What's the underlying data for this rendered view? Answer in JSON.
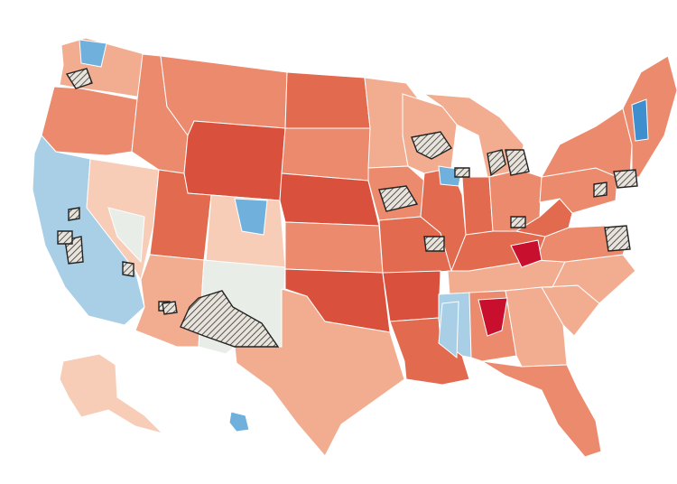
{
  "map": {
    "palette": {
      "strong_red": "#c8102e",
      "dark_red": "#d9503c",
      "red": "#e26a4f",
      "mid_red": "#eb8a6c",
      "light_red": "#f2ad91",
      "pale_red": "#f8cdb8",
      "neutral": "#e9ede8",
      "pale_blue": "#cfe3ee",
      "light_blue": "#a8cfe6",
      "blue": "#6fb0dc",
      "dark_blue": "#3f8fcf",
      "hatch": "#bdb7ae",
      "border": "#ffffff",
      "outline": "#222222"
    },
    "regions": [
      {
        "name": "washington",
        "fill": "light_red"
      },
      {
        "name": "oregon",
        "fill": "mid_red"
      },
      {
        "name": "california",
        "fill": "light_blue"
      },
      {
        "name": "nevada",
        "fill": "pale_red"
      },
      {
        "name": "idaho",
        "fill": "mid_red"
      },
      {
        "name": "montana",
        "fill": "mid_red"
      },
      {
        "name": "wyoming",
        "fill": "dark_red"
      },
      {
        "name": "utah",
        "fill": "red"
      },
      {
        "name": "colorado",
        "fill": "pale_red"
      },
      {
        "name": "arizona",
        "fill": "light_red"
      },
      {
        "name": "new-mexico",
        "fill": "neutral"
      },
      {
        "name": "north-dakota",
        "fill": "red"
      },
      {
        "name": "south-dakota",
        "fill": "mid_red"
      },
      {
        "name": "nebraska",
        "fill": "dark_red"
      },
      {
        "name": "kansas",
        "fill": "mid_red"
      },
      {
        "name": "oklahoma",
        "fill": "dark_red"
      },
      {
        "name": "texas",
        "fill": "light_red"
      },
      {
        "name": "minnesota",
        "fill": "light_red"
      },
      {
        "name": "iowa",
        "fill": "mid_red"
      },
      {
        "name": "missouri",
        "fill": "red"
      },
      {
        "name": "arkansas",
        "fill": "dark_red"
      },
      {
        "name": "louisiana",
        "fill": "red"
      },
      {
        "name": "wisconsin",
        "fill": "light_red"
      },
      {
        "name": "illinois",
        "fill": "red"
      },
      {
        "name": "michigan",
        "fill": "light_red"
      },
      {
        "name": "indiana",
        "fill": "red"
      },
      {
        "name": "ohio",
        "fill": "mid_red"
      },
      {
        "name": "kentucky",
        "fill": "red"
      },
      {
        "name": "tennessee",
        "fill": "light_red"
      },
      {
        "name": "mississippi",
        "fill": "light_blue"
      },
      {
        "name": "alabama",
        "fill": "mid_red"
      },
      {
        "name": "georgia",
        "fill": "light_red"
      },
      {
        "name": "florida",
        "fill": "mid_red"
      },
      {
        "name": "south-carolina",
        "fill": "light_red"
      },
      {
        "name": "north-carolina",
        "fill": "light_red"
      },
      {
        "name": "virginia",
        "fill": "mid_red"
      },
      {
        "name": "west-virginia",
        "fill": "red"
      },
      {
        "name": "pennsylvania",
        "fill": "mid_red"
      },
      {
        "name": "new-york",
        "fill": "mid_red"
      },
      {
        "name": "new-england",
        "fill": "mid_red"
      },
      {
        "name": "alaska",
        "fill": "pale_red"
      },
      {
        "name": "hawaii",
        "fill": "blue"
      }
    ],
    "highlights": [
      {
        "name": "north-alabama-cluster",
        "fill": "strong_red"
      },
      {
        "name": "eastern-kentucky",
        "fill": "strong_red"
      },
      {
        "name": "eastern-nevada",
        "fill": "neutral"
      },
      {
        "name": "denver-metro",
        "fill": "blue"
      },
      {
        "name": "seattle-metro",
        "fill": "blue"
      },
      {
        "name": "chicago-metro",
        "fill": "blue"
      },
      {
        "name": "mississippi-delta",
        "fill": "light_blue"
      },
      {
        "name": "maine-north",
        "fill": "dark_blue"
      }
    ],
    "hatched_areas": [
      "seattle-hatch",
      "arizona-hatch",
      "los-angeles-hatch",
      "las-vegas-hatch",
      "bay-area-hatch",
      "phoenix-hatch",
      "twin-cities-hatch",
      "wisconsin-hatch",
      "milwaukee-hatch",
      "detroit-hatch",
      "michigan-hatch",
      "kansas-city-hatch",
      "st-louis-hatch",
      "columbus-hatch",
      "pittsburgh-hatch",
      "dc-hatch",
      "philadelphia-hatch",
      "nashville-hatch"
    ]
  }
}
